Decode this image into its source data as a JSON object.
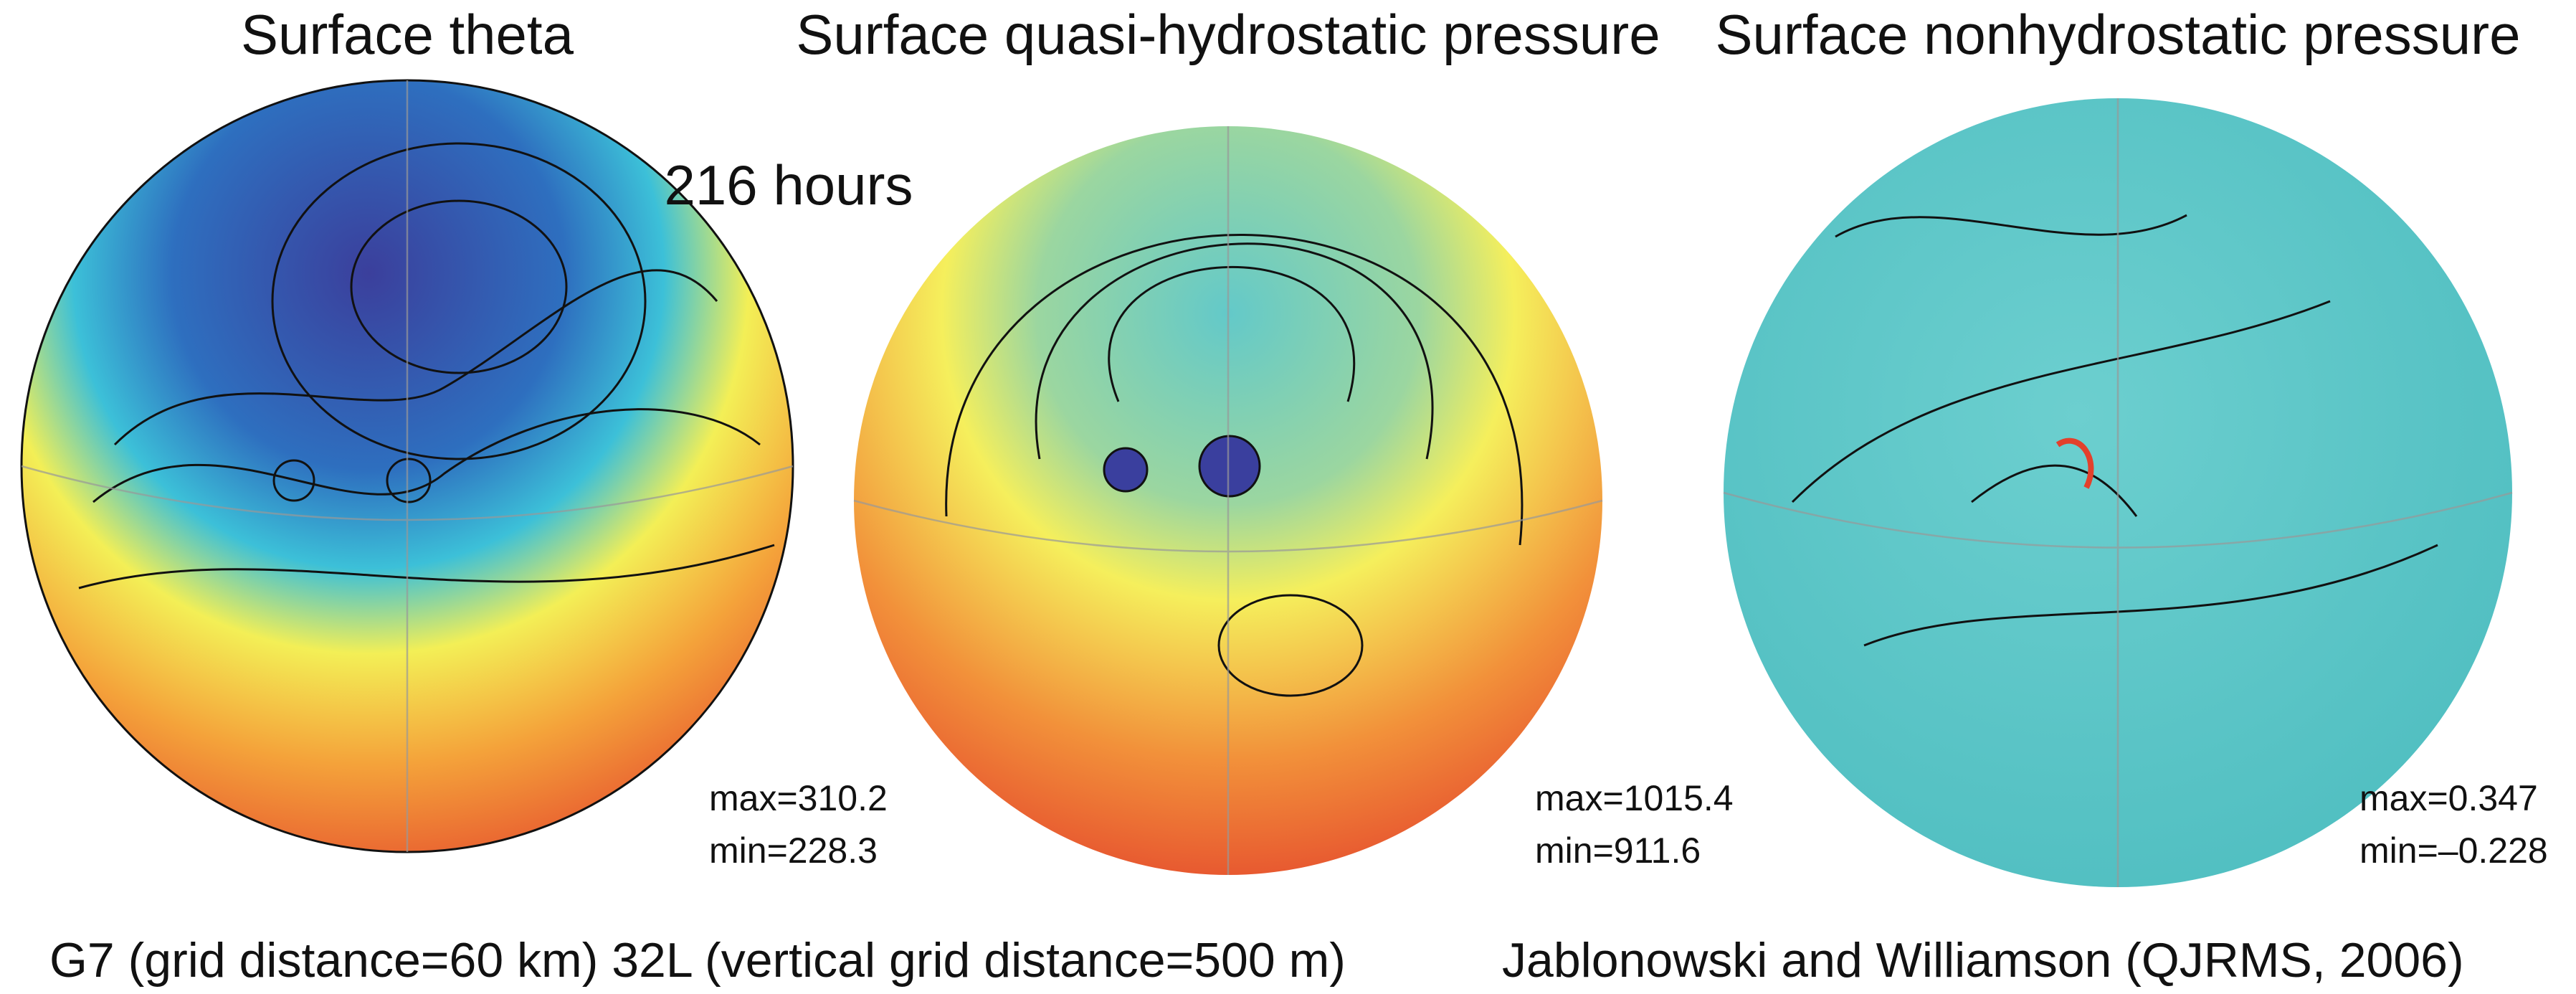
{
  "time_label": "216 hours",
  "panels": [
    {
      "title": "Surface theta",
      "max": "max=310.2",
      "min": "min=228.3"
    },
    {
      "title": "Surface quasi-hydrostatic pressure",
      "max": "max=1015.4",
      "min": "min=911.6"
    },
    {
      "title": "Surface nonhydrostatic pressure",
      "max": "max=0.347",
      "min": "min=–0.228"
    }
  ],
  "footer": {
    "left": "G7 (grid distance=60 km) 32L (vertical grid distance=500 m)",
    "right": "Jablonowski and Williamson (QJRMS, 2006)"
  }
}
